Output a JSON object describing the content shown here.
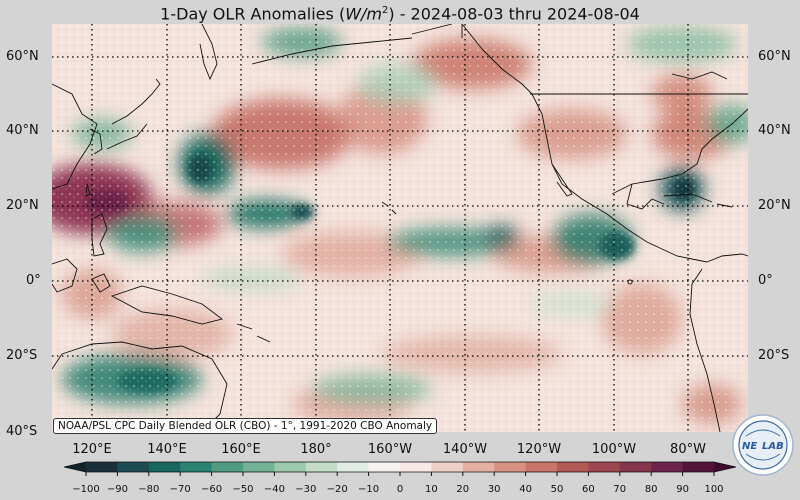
{
  "title": {
    "prefix": "1-Day OLR Anomalies (",
    "unit_letter": "W/m",
    "unit_exp": "2",
    "suffix": ") - 2024-08-03 thru 2024-08-04"
  },
  "map": {
    "lat_labels": [
      "60°N",
      "40°N",
      "20°N",
      "0°",
      "20°S",
      "40°S"
    ],
    "lon_labels": [
      "120°E",
      "140°E",
      "160°E",
      "180°",
      "160°W",
      "140°W",
      "120°W",
      "100°W",
      "80°W"
    ],
    "credit": "NOAA/PSL CPC Daily Blended OLR (CBO) - 1°, 1991-2020 CBO Anomaly",
    "logo_text": {
      "top": "NE",
      "bottom": "LAB"
    },
    "colors": {
      "background": "#d4d4d4",
      "ocean_base": "#f4e3dc",
      "coast": "#111111"
    }
  },
  "colorbar": {
    "ticks": [
      "−100",
      "−90",
      "−80",
      "−70",
      "−60",
      "−50",
      "−40",
      "−30",
      "−20",
      "−10",
      "0",
      "10",
      "20",
      "30",
      "40",
      "50",
      "60",
      "70",
      "80",
      "90",
      "100"
    ],
    "colors": [
      "#1b2f3b",
      "#1d4b53",
      "#17665f",
      "#2a8270",
      "#4f9c83",
      "#73b196",
      "#9cc8ad",
      "#c2dcc9",
      "#e2ede5",
      "#f6f3f1",
      "#f7eae6",
      "#efd0c6",
      "#e4b1a2",
      "#d79283",
      "#c97468",
      "#b45a55",
      "#9d4650",
      "#86354f",
      "#6d244a",
      "#521439"
    ],
    "arrow_low": "#12232c",
    "arrow_high": "#3e0c2c"
  }
}
